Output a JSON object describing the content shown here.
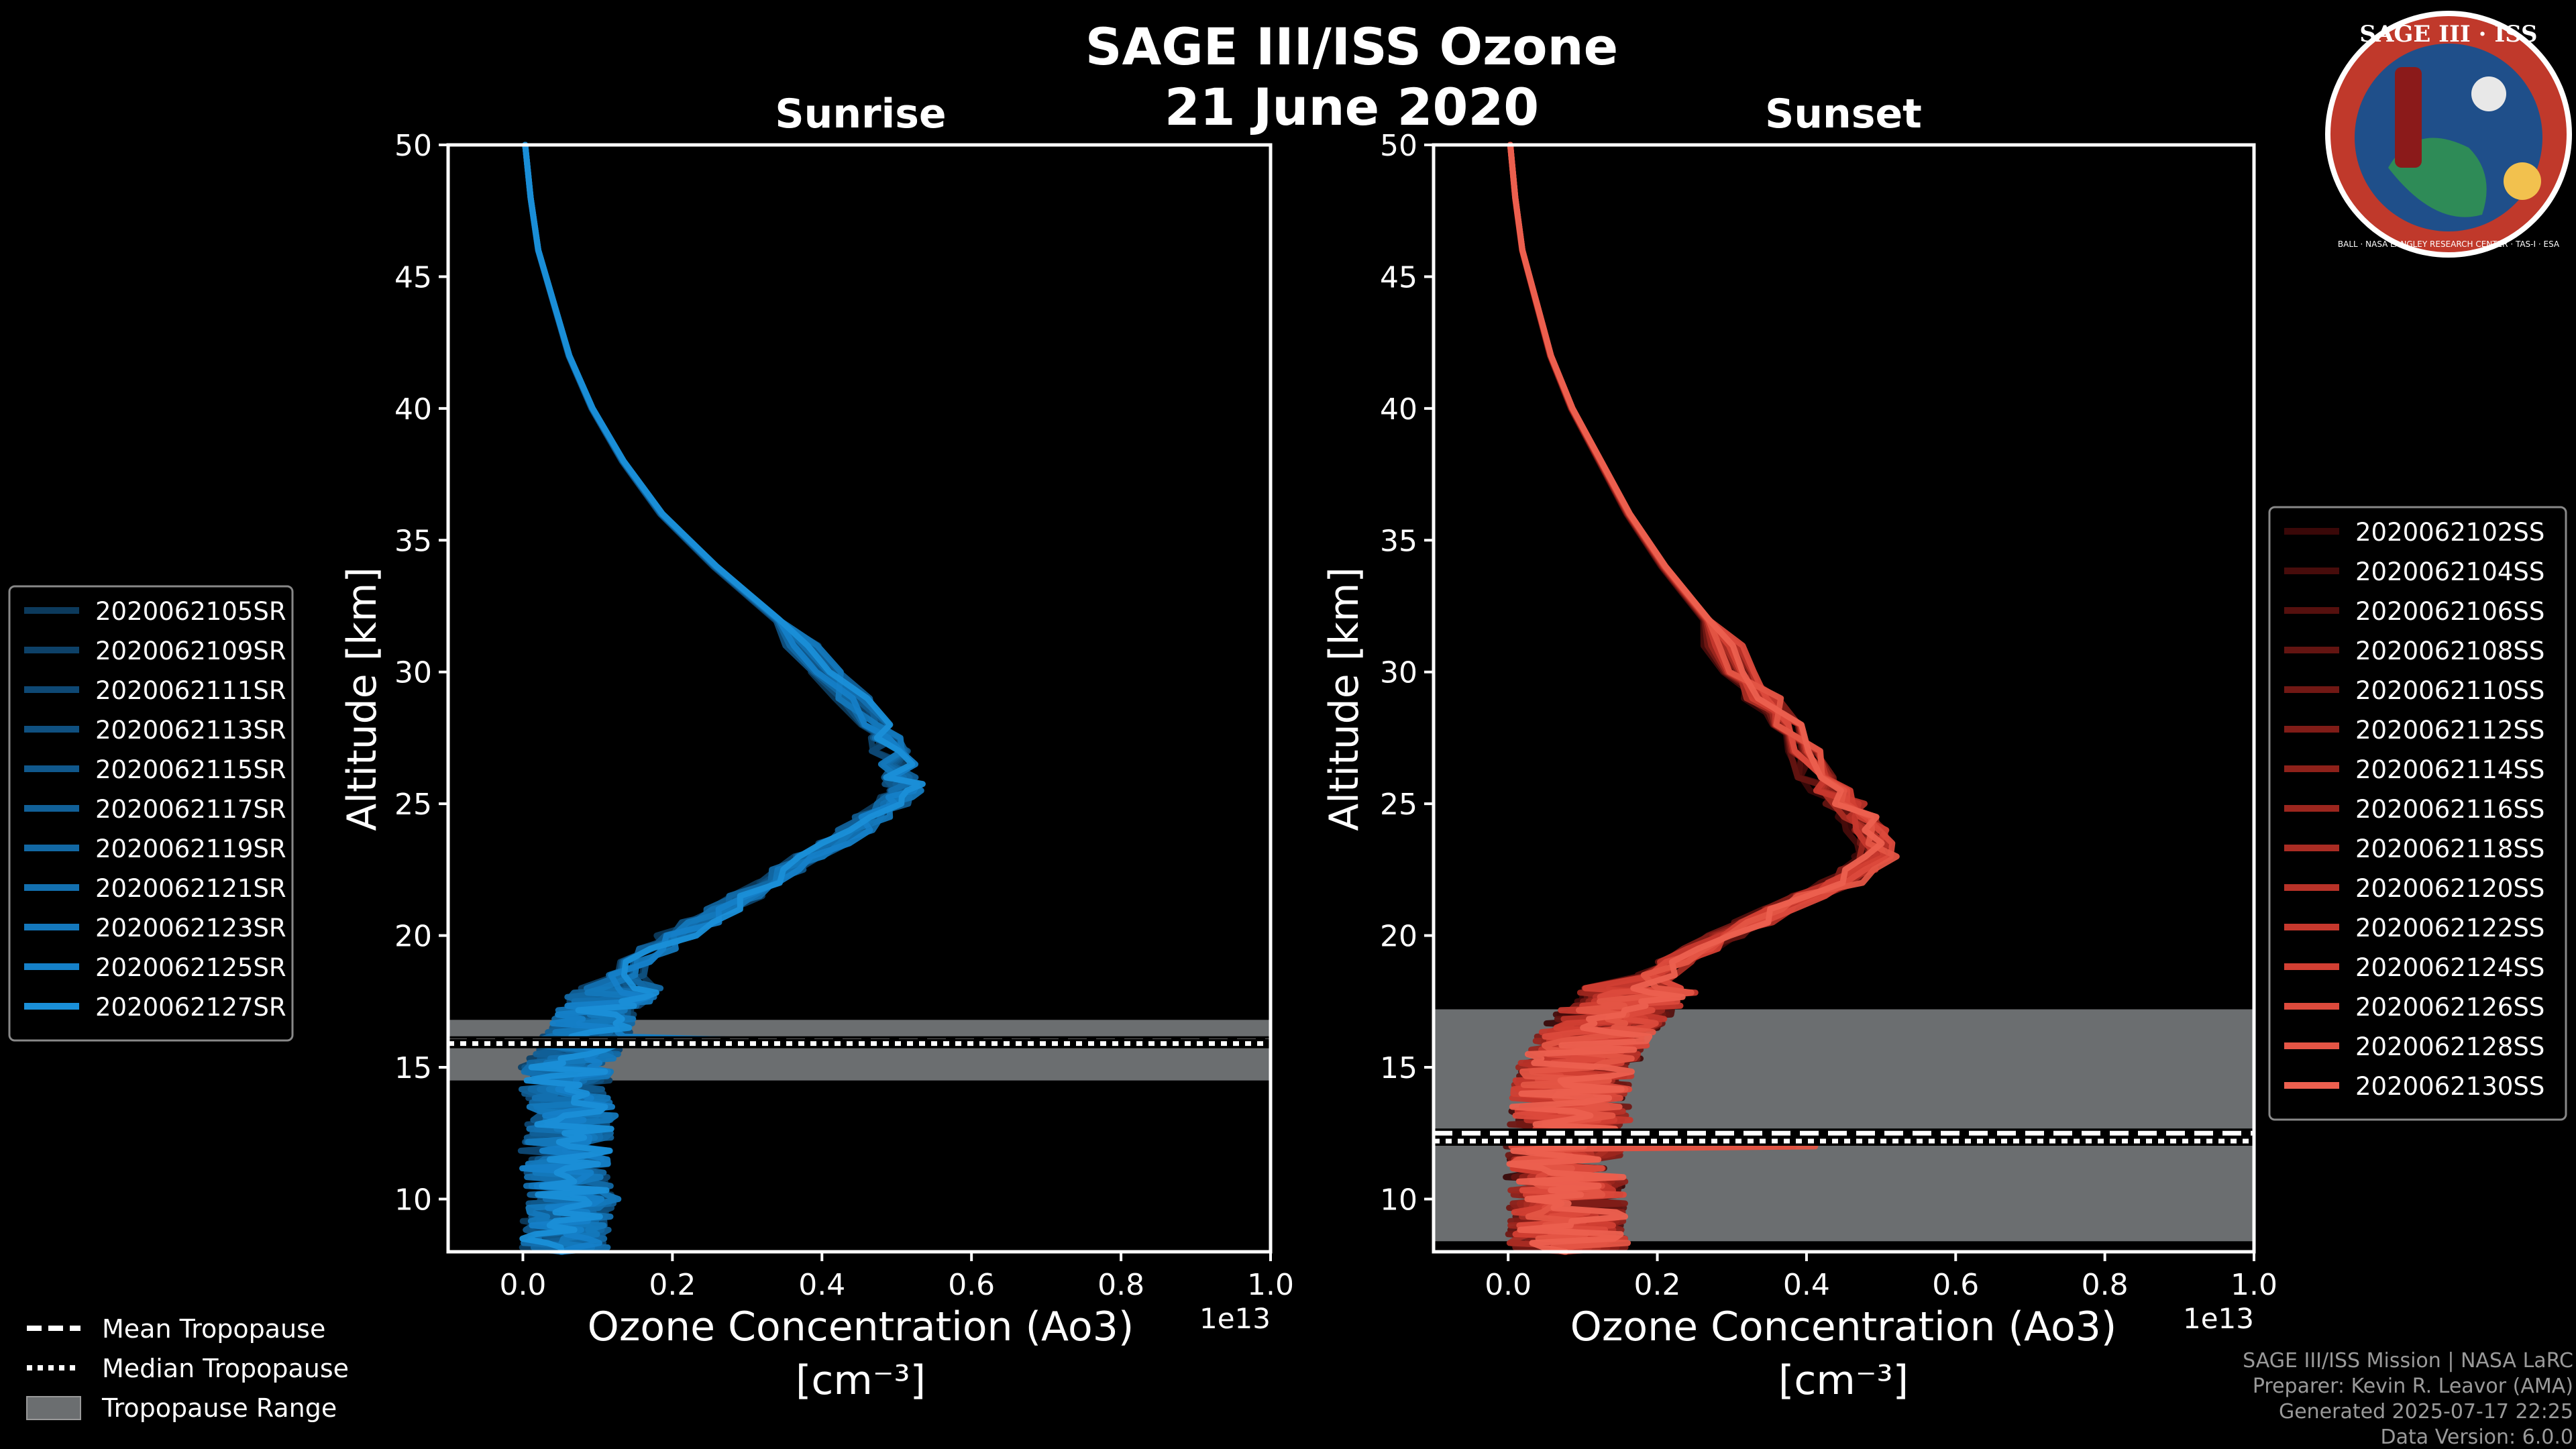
{
  "figure": {
    "title_line1": "SAGE III/ISS Ozone",
    "title_line2": "21 June 2020"
  },
  "logo": {
    "title": "SAGE III · ISS",
    "ring_text": "BALL · NASA LANGLEY RESEARCH CENTER · TAS-I · ESA",
    "colors": {
      "ring": "#c0392b",
      "face": "#1f4f8a",
      "border": "#ffffff"
    }
  },
  "chart_data": [
    {
      "type": "line",
      "title": "Sunrise",
      "xlabel": "Ozone Concentration (Ao3)",
      "xlabel_units": "[cm⁻³]",
      "ylabel": "Altitude [km]",
      "offset_text": "1e13",
      "xlim": [
        -0.1,
        1.0
      ],
      "ylim": [
        8,
        50
      ],
      "xticks": [
        "0.0",
        "0.2",
        "0.4",
        "0.6",
        "0.8",
        "1.0"
      ],
      "xtick_values": [
        0.0,
        0.2,
        0.4,
        0.6,
        0.8,
        1.0
      ],
      "yticks": [
        "10",
        "15",
        "20",
        "25",
        "30",
        "35",
        "40",
        "45",
        "50"
      ],
      "ytick_values": [
        10,
        15,
        20,
        25,
        30,
        35,
        40,
        45,
        50
      ],
      "tropopause": {
        "mean": 16.0,
        "median": 15.9,
        "range": [
          14.5,
          16.8
        ]
      },
      "profile_template": {
        "alt": [
          50,
          48,
          46,
          44,
          42,
          40,
          38,
          36,
          34,
          32,
          30,
          28,
          27,
          26,
          25.5,
          25,
          24,
          23,
          22,
          21,
          20,
          19,
          18,
          17,
          16,
          15,
          14,
          13,
          12,
          11,
          10,
          9,
          8
        ],
        "conc": [
          0.003,
          0.01,
          0.02,
          0.04,
          0.06,
          0.09,
          0.13,
          0.18,
          0.25,
          0.33,
          0.4,
          0.46,
          0.48,
          0.49,
          0.5,
          0.48,
          0.43,
          0.37,
          0.32,
          0.26,
          0.2,
          0.15,
          0.12,
          0.09,
          0.07,
          0.05,
          0.05,
          0.06,
          0.05,
          0.05,
          0.06,
          0.05,
          0.05
        ]
      },
      "series": [
        {
          "name": "2020062105SR",
          "color": "#0c3a5c"
        },
        {
          "name": "2020062109SR",
          "color": "#0d4168"
        },
        {
          "name": "2020062111SR",
          "color": "#0e4874"
        },
        {
          "name": "2020062113SR",
          "color": "#0f5080"
        },
        {
          "name": "2020062115SR",
          "color": "#10588c"
        },
        {
          "name": "2020062117SR",
          "color": "#116098"
        },
        {
          "name": "2020062119SR",
          "color": "#1268a4"
        },
        {
          "name": "2020062121SR",
          "color": "#1370b0"
        },
        {
          "name": "2020062123SR",
          "color": "#1478bc"
        },
        {
          "name": "2020062125SR",
          "color": "#1580c8"
        },
        {
          "name": "2020062127SR",
          "color": "#1a8fd8"
        }
      ]
    },
    {
      "type": "line",
      "title": "Sunset",
      "xlabel": "Ozone Concentration (Ao3)",
      "xlabel_units": "[cm⁻³]",
      "ylabel": "Altitude [km]",
      "offset_text": "1e13",
      "xlim": [
        -0.1,
        1.0
      ],
      "ylim": [
        8,
        50
      ],
      "xticks": [
        "0.0",
        "0.2",
        "0.4",
        "0.6",
        "0.8",
        "1.0"
      ],
      "xtick_values": [
        0.0,
        0.2,
        0.4,
        0.6,
        0.8,
        1.0
      ],
      "yticks": [
        "10",
        "15",
        "20",
        "25",
        "30",
        "35",
        "40",
        "45",
        "50"
      ],
      "ytick_values": [
        10,
        15,
        20,
        25,
        30,
        35,
        40,
        45,
        50
      ],
      "tropopause": {
        "mean": 12.5,
        "median": 12.2,
        "range": [
          8.4,
          17.2
        ]
      },
      "profile_template": {
        "alt": [
          50,
          48,
          46,
          44,
          42,
          40,
          38,
          36,
          34,
          32,
          30,
          28,
          26,
          25,
          24,
          23,
          22,
          21,
          20,
          19,
          18,
          17,
          16,
          15,
          14,
          13,
          12,
          11,
          10,
          9,
          8
        ],
        "conc": [
          0.003,
          0.01,
          0.02,
          0.04,
          0.06,
          0.09,
          0.13,
          0.17,
          0.22,
          0.28,
          0.33,
          0.39,
          0.44,
          0.48,
          0.51,
          0.52,
          0.47,
          0.39,
          0.31,
          0.24,
          0.18,
          0.14,
          0.11,
          0.09,
          0.08,
          0.08,
          0.07,
          0.07,
          0.08,
          0.07,
          0.08
        ]
      },
      "series": [
        {
          "name": "2020062102SS",
          "color": "#3a0808"
        },
        {
          "name": "2020062104SS",
          "color": "#470c0b"
        },
        {
          "name": "2020062106SS",
          "color": "#55100e"
        },
        {
          "name": "2020062108SS",
          "color": "#631411"
        },
        {
          "name": "2020062110SS",
          "color": "#711814"
        },
        {
          "name": "2020062112SS",
          "color": "#801c17"
        },
        {
          "name": "2020062114SS",
          "color": "#8e211a"
        },
        {
          "name": "2020062116SS",
          "color": "#9c261e"
        },
        {
          "name": "2020062118SS",
          "color": "#aa2c23"
        },
        {
          "name": "2020062120SS",
          "color": "#b83228"
        },
        {
          "name": "2020062122SS",
          "color": "#c6382d"
        },
        {
          "name": "2020062124SS",
          "color": "#d23f33"
        },
        {
          "name": "2020062126SS",
          "color": "#dc4a3c"
        },
        {
          "name": "2020062128SS",
          "color": "#e45545"
        },
        {
          "name": "2020062130SS",
          "color": "#ec604f"
        }
      ]
    }
  ],
  "tropopause_legend": [
    {
      "label": "Mean Tropopause",
      "style": "dashed"
    },
    {
      "label": "Median Tropopause",
      "style": "dotted"
    },
    {
      "label": "Tropopause Range",
      "style": "patch",
      "color": "#6b6e70"
    }
  ],
  "footer": [
    "SAGE III/ISS Mission | NASA LaRC",
    "Preparer: Kevin R. Leavor (AMA)",
    "Generated 2025-07-17 22:25",
    "Data Version: 6.0.0"
  ]
}
